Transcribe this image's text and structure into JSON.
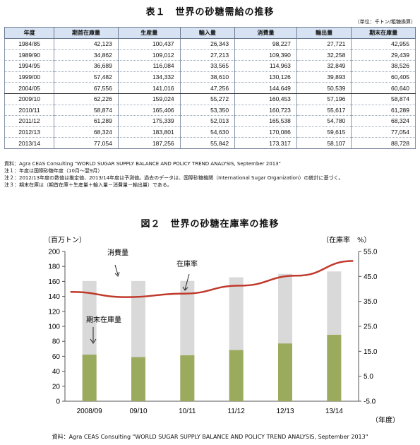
{
  "table1": {
    "title": "表１　世界の砂糖需給の推移",
    "unit": "（単位：千トン/粗糖換算）",
    "headers": [
      "年度",
      "期首在庫量",
      "生産量",
      "輸入量",
      "消費量",
      "輸出量",
      "期末在庫量"
    ],
    "rows": [
      [
        "1984/85",
        "42,123",
        "100,437",
        "26,343",
        "98,227",
        "27,721",
        "42,955"
      ],
      [
        "1989/90",
        "34,862",
        "109,012",
        "27,213",
        "109,390",
        "32,258",
        "29,439"
      ],
      [
        "1994/95",
        "36,689",
        "116,084",
        "33,565",
        "114,963",
        "32,849",
        "38,526"
      ],
      [
        "1999/00",
        "57,482",
        "134,332",
        "38,610",
        "130,126",
        "39,893",
        "60,405"
      ],
      [
        "2004/05",
        "67,556",
        "141,016",
        "47,256",
        "144,649",
        "50,539",
        "60,640"
      ],
      [
        "2009/10",
        "62,226",
        "159,024",
        "55,272",
        "160,453",
        "57,196",
        "58,874"
      ],
      [
        "2010/11",
        "58,874",
        "165,406",
        "53,350",
        "160,723",
        "55,617",
        "61,289"
      ],
      [
        "2011/12",
        "61,289",
        "175,339",
        "52,013",
        "165,538",
        "54,780",
        "68,324"
      ],
      [
        "2012/13",
        "68,324",
        "183,801",
        "54,630",
        "170,086",
        "59,615",
        "77,054"
      ],
      [
        "2013/14",
        "77,054",
        "187,256",
        "55,842",
        "173,317",
        "58,107",
        "88,728"
      ]
    ],
    "notes": [
      "資料：Agra CEAS Consulting \"WORLD SUGAR SUPPLY BALANCE AND POLICY TREND ANALYSIS, September 2013\"",
      "注１：年度は国際砂糖年度（10月～翌9月）",
      "注２：2012/13年度の数値は推定値、2013/14年度は予測値。過去のデータは、国際砂糖機関（International Sugar Organization）の統計に基づく。",
      "注３：期末在庫は（期首在庫＋生産量＋輸入量－消費量－輸出量）である。"
    ]
  },
  "figure2": {
    "title": "図２　世界の砂糖在庫率の推移",
    "source": "資料：Agra CEAS Consulting \"WORLD SUGAR SUPPLY BALANCE AND POLICY TREND ANALYSIS, September 2013\""
  },
  "chart_data": {
    "type": "bar",
    "categories": [
      "2008/09",
      "09/10",
      "10/11",
      "11/12",
      "12/13",
      "13/14"
    ],
    "series": [
      {
        "name": "消費量",
        "kind": "bar",
        "axis": "left",
        "values": [
          160.5,
          160.5,
          160.7,
          165.5,
          170.1,
          173.3
        ],
        "color": "#d9d9d9"
      },
      {
        "name": "期末在庫量",
        "kind": "bar",
        "axis": "left",
        "values": [
          62.2,
          58.9,
          61.3,
          68.3,
          77.1,
          88.7
        ],
        "color": "#9aab5e"
      },
      {
        "name": "在庫率",
        "kind": "line",
        "axis": "right",
        "values": [
          38.8,
          36.7,
          38.1,
          41.3,
          45.3,
          51.2
        ],
        "color": "#c0392b"
      }
    ],
    "ylabel_left": "（百万トン）",
    "ylabel_right": "（在庫率　%）",
    "xlabel": "（年度）",
    "ylim_left": [
      0,
      200
    ],
    "yticks_left": [
      "0",
      "20",
      "40",
      "60",
      "80",
      "100",
      "120",
      "140",
      "160",
      "180",
      "200"
    ],
    "ylim_right": [
      -5.0,
      55.0
    ],
    "yticks_right": [
      "-5.0",
      "5.0",
      "15.0",
      "25.0",
      "35.0",
      "45.0",
      "55.0"
    ],
    "annotations": [
      "消費量",
      "在庫率",
      "期末在庫量"
    ],
    "grid": false,
    "legend": "none"
  }
}
